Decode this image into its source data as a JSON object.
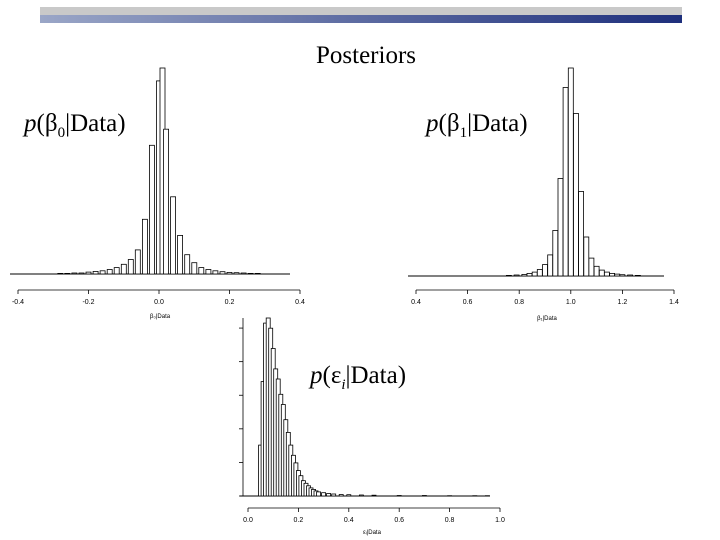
{
  "slide": {
    "title": "Posteriors",
    "banner_colors": [
      "#9aa6c7",
      "#1e2f7c"
    ]
  },
  "labels": {
    "beta0": {
      "p": "p",
      "open": "(",
      "sym": "β",
      "sub": "0",
      "rest": "|Data)"
    },
    "beta1": {
      "p": "p",
      "open": "(",
      "sym": "β",
      "sub": "1",
      "rest": "|Data)"
    },
    "eps": {
      "p": "p",
      "open": "(",
      "sym": "ε",
      "sub": "i",
      "rest": "|Data)"
    }
  },
  "chart_data": [
    {
      "type": "bar",
      "xlabel": "β₀|Data",
      "xlim": [
        -0.4,
        0.4
      ],
      "x_ticks": [
        "-0.4",
        "-0.2",
        "0.0",
        "0.2",
        "0.4"
      ],
      "x_tick_values": [
        -0.4,
        -0.2,
        0.0,
        0.2,
        0.4
      ],
      "grid": false,
      "bins": [
        {
          "x": -0.28,
          "v": 0.2
        },
        {
          "x": -0.26,
          "v": 0.2
        },
        {
          "x": -0.24,
          "v": 0.3
        },
        {
          "x": -0.22,
          "v": 0.3
        },
        {
          "x": -0.2,
          "v": 0.6
        },
        {
          "x": -0.18,
          "v": 0.8
        },
        {
          "x": -0.16,
          "v": 1.0
        },
        {
          "x": -0.14,
          "v": 1.4
        },
        {
          "x": -0.12,
          "v": 2.0
        },
        {
          "x": -0.1,
          "v": 3.0
        },
        {
          "x": -0.08,
          "v": 4.5
        },
        {
          "x": -0.06,
          "v": 7.5
        },
        {
          "x": -0.04,
          "v": 17
        },
        {
          "x": -0.02,
          "v": 40
        },
        {
          "x": 0.0,
          "v": 60
        },
        {
          "x": 0.01,
          "v": 64
        },
        {
          "x": 0.02,
          "v": 45
        },
        {
          "x": 0.04,
          "v": 24
        },
        {
          "x": 0.06,
          "v": 12
        },
        {
          "x": 0.08,
          "v": 6
        },
        {
          "x": 0.1,
          "v": 3.5
        },
        {
          "x": 0.12,
          "v": 2.0
        },
        {
          "x": 0.14,
          "v": 1.4
        },
        {
          "x": 0.16,
          "v": 1.0
        },
        {
          "x": 0.18,
          "v": 0.7
        },
        {
          "x": 0.2,
          "v": 0.5
        },
        {
          "x": 0.22,
          "v": 0.4
        },
        {
          "x": 0.24,
          "v": 0.3
        },
        {
          "x": 0.26,
          "v": 0.2
        },
        {
          "x": 0.28,
          "v": 0.2
        }
      ]
    },
    {
      "type": "bar",
      "xlabel": "β₁|Data",
      "xlim": [
        0.4,
        1.4
      ],
      "x_ticks": [
        "0.4",
        "0.6",
        "0.8",
        "1.0",
        "1.2",
        "1.4"
      ],
      "x_tick_values": [
        0.4,
        0.6,
        0.8,
        1.0,
        1.2,
        1.4
      ],
      "grid": false,
      "bins": [
        {
          "x": 0.76,
          "v": 0.2
        },
        {
          "x": 0.79,
          "v": 0.3
        },
        {
          "x": 0.82,
          "v": 0.5
        },
        {
          "x": 0.84,
          "v": 0.8
        },
        {
          "x": 0.86,
          "v": 1.2
        },
        {
          "x": 0.88,
          "v": 2.0
        },
        {
          "x": 0.9,
          "v": 3.5
        },
        {
          "x": 0.92,
          "v": 6.5
        },
        {
          "x": 0.94,
          "v": 14
        },
        {
          "x": 0.96,
          "v": 30
        },
        {
          "x": 0.98,
          "v": 58
        },
        {
          "x": 1.0,
          "v": 64
        },
        {
          "x": 1.02,
          "v": 50
        },
        {
          "x": 1.04,
          "v": 26
        },
        {
          "x": 1.06,
          "v": 12
        },
        {
          "x": 1.08,
          "v": 5.5
        },
        {
          "x": 1.1,
          "v": 3.0
        },
        {
          "x": 1.12,
          "v": 1.8
        },
        {
          "x": 1.14,
          "v": 1.2
        },
        {
          "x": 1.16,
          "v": 0.8
        },
        {
          "x": 1.18,
          "v": 0.6
        },
        {
          "x": 1.2,
          "v": 0.4
        },
        {
          "x": 1.23,
          "v": 0.3
        },
        {
          "x": 1.26,
          "v": 0.2
        }
      ]
    },
    {
      "type": "bar",
      "xlabel": "εᵢ|Data",
      "xlim": [
        0.0,
        1.0
      ],
      "x_ticks": [
        "0.0",
        "0.2",
        "0.4",
        "0.6",
        "0.8",
        "1.0"
      ],
      "x_tick_values": [
        0.0,
        0.2,
        0.4,
        0.6,
        0.8,
        1.0
      ],
      "grid": false,
      "bins": [
        {
          "x": 0.05,
          "v": 20
        },
        {
          "x": 0.06,
          "v": 45
        },
        {
          "x": 0.07,
          "v": 68
        },
        {
          "x": 0.08,
          "v": 70
        },
        {
          "x": 0.09,
          "v": 66
        },
        {
          "x": 0.1,
          "v": 58
        },
        {
          "x": 0.11,
          "v": 50
        },
        {
          "x": 0.12,
          "v": 46
        },
        {
          "x": 0.13,
          "v": 40
        },
        {
          "x": 0.14,
          "v": 36
        },
        {
          "x": 0.15,
          "v": 30
        },
        {
          "x": 0.16,
          "v": 25
        },
        {
          "x": 0.17,
          "v": 20
        },
        {
          "x": 0.18,
          "v": 16
        },
        {
          "x": 0.19,
          "v": 13
        },
        {
          "x": 0.2,
          "v": 10
        },
        {
          "x": 0.21,
          "v": 8
        },
        {
          "x": 0.22,
          "v": 6
        },
        {
          "x": 0.23,
          "v": 5
        },
        {
          "x": 0.24,
          "v": 4
        },
        {
          "x": 0.25,
          "v": 3.2
        },
        {
          "x": 0.26,
          "v": 2.6
        },
        {
          "x": 0.27,
          "v": 2.0
        },
        {
          "x": 0.28,
          "v": 1.6
        },
        {
          "x": 0.3,
          "v": 1.3
        },
        {
          "x": 0.32,
          "v": 1.0
        },
        {
          "x": 0.34,
          "v": 0.8
        },
        {
          "x": 0.37,
          "v": 0.6
        },
        {
          "x": 0.4,
          "v": 0.5
        },
        {
          "x": 0.45,
          "v": 0.4
        },
        {
          "x": 0.5,
          "v": 0.3
        },
        {
          "x": 0.6,
          "v": 0.2
        },
        {
          "x": 0.7,
          "v": 0.2
        },
        {
          "x": 0.8,
          "v": 0.1
        },
        {
          "x": 0.9,
          "v": 0.1
        },
        {
          "x": 0.95,
          "v": 0.1
        }
      ]
    }
  ]
}
